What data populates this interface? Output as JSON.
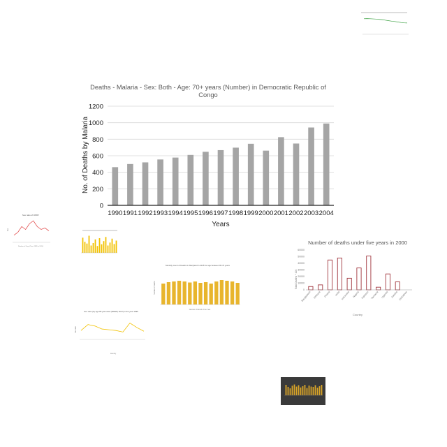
{
  "chart_data": [
    {
      "type": "bar",
      "title": "Deaths - Malaria - Sex: Both - Age: 70+ years (Number) in Democratic Republic of Congo",
      "title_lines": [
        "Deaths - Malaria - Sex: Both - Age: 70+ years (Number) in Democratic Republic of",
        "Congo"
      ],
      "xlabel": "Years",
      "ylabel": "No. of Deaths by Malaria",
      "categories": [
        "1990",
        "1991",
        "1992",
        "1993",
        "1994",
        "1995",
        "1996",
        "1997",
        "1998",
        "1999",
        "2000",
        "2001",
        "2002",
        "2003",
        "2004"
      ],
      "values": [
        462,
        500,
        520,
        555,
        578,
        610,
        648,
        668,
        698,
        745,
        662,
        825,
        748,
        942,
        990
      ],
      "ylim": [
        0,
        1200
      ],
      "yticks": [
        0,
        200,
        400,
        600,
        800,
        1000,
        1200
      ],
      "grid": true,
      "bar_color": "#a5a5a5"
    },
    {
      "type": "bar",
      "title": "Number of deaths under five years in 2000",
      "xlabel": "Country",
      "ylabel": "Total Deaths * 100",
      "categories": [
        "Bangladesh",
        "Ethiopia",
        "Ghana",
        "India",
        "Indonesia",
        "Nigeria",
        "Pakistan",
        "Tanzania",
        "Uganda",
        "Zambia",
        "Zimbabwe"
      ],
      "values": [
        5000,
        7500,
        45000,
        48000,
        17500,
        33000,
        51000,
        4000,
        24000,
        12000,
        0
      ],
      "ylim": [
        0,
        60000
      ],
      "yticks": [
        0,
        10000,
        20000,
        30000,
        40000,
        50000,
        60000
      ],
      "bar_color": "#a0343c"
    },
    {
      "type": "bar",
      "title": "Monthly count of Deaths in Maryland in 2015 for age between 65-74 years",
      "xlabel": "Number of Month of the Year",
      "ylabel": "Number of Deaths",
      "categories": [
        "1",
        "2",
        "3",
        "4",
        "5",
        "6",
        "7",
        "8",
        "9",
        "10",
        "11",
        "12",
        "13",
        "14",
        "15"
      ],
      "values": [
        60,
        64,
        66,
        68,
        66,
        63,
        66,
        62,
        64,
        60,
        66,
        70,
        68,
        66,
        62
      ],
      "ylim": [
        0,
        100
      ],
      "bar_color": "#e8b52d"
    },
    {
      "type": "line",
      "title": "Sex ratio (by age 80 year wise (WHEP) 2017) in the year 1995",
      "xlabel": "Country",
      "ylabel": "Sex ratio",
      "x": [
        "1",
        "2",
        "3",
        "4",
        "5",
        "6",
        "7",
        "8",
        "9",
        "10"
      ],
      "y": [
        52,
        60,
        58,
        54,
        53,
        52,
        50,
        62,
        56,
        51
      ],
      "ylim": [
        40,
        70
      ],
      "line_color": "#f2c200"
    },
    {
      "type": "line",
      "title": "Sex ratio of DPRY",
      "xlabel": "Number of Days (Time 1999 to 2014)",
      "ylabel": "Sex",
      "x": [
        "1",
        "2",
        "3",
        "4",
        "5",
        "6",
        "7",
        "8",
        "9",
        "10"
      ],
      "y": [
        10,
        14,
        22,
        18,
        26,
        30,
        22,
        18,
        20,
        16
      ],
      "ylim": [
        0,
        35
      ],
      "line_color": "#e04040"
    },
    {
      "type": "line",
      "title": "",
      "xlabel": "",
      "ylabel": "",
      "x": [
        "1",
        "2",
        "3",
        "4",
        "5",
        "6",
        "7",
        "8",
        "9",
        "10",
        "11",
        "12",
        "13",
        "14",
        "15"
      ],
      "y": [
        95,
        96,
        95,
        94,
        93,
        91,
        89,
        86,
        83,
        80,
        78,
        75,
        72,
        70,
        69
      ],
      "ylim": [
        0,
        120
      ],
      "line_color": "#3aa040"
    },
    {
      "type": "bar",
      "title": "",
      "xlabel": "",
      "ylabel": "",
      "categories": [
        "1",
        "2",
        "3",
        "4",
        "5",
        "6",
        "7",
        "8",
        "9",
        "10",
        "11",
        "12",
        "13",
        "14",
        "15",
        "16",
        "17"
      ],
      "values": [
        62,
        45,
        38,
        70,
        30,
        40,
        55,
        28,
        60,
        35,
        48,
        65,
        30,
        42,
        58,
        36,
        50
      ],
      "ylim": [
        0,
        80
      ],
      "bar_color": "#f2c200"
    },
    {
      "type": "bar",
      "title": "",
      "xlabel": "",
      "ylabel": "",
      "categories": [
        "1",
        "2",
        "3",
        "4",
        "5",
        "6",
        "7",
        "8",
        "9",
        "10",
        "11",
        "12",
        "13",
        "14",
        "15",
        "16",
        "17",
        "18"
      ],
      "values": [
        60,
        48,
        40,
        55,
        62,
        50,
        58,
        45,
        52,
        60,
        42,
        56,
        50,
        48,
        58,
        44,
        52,
        60
      ],
      "ylim": [
        0,
        80
      ],
      "bar_color": "#d9a528",
      "background": "#3a3a3a"
    }
  ]
}
